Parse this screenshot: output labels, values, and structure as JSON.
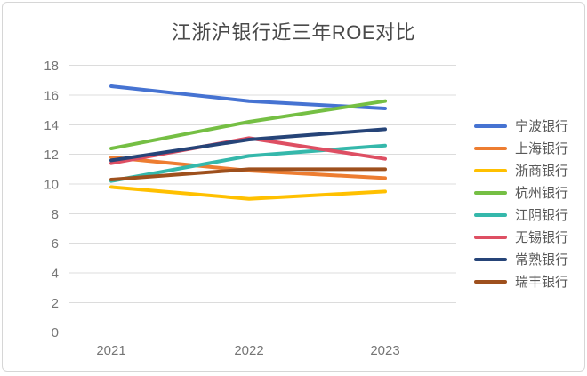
{
  "chart_data": {
    "type": "line",
    "title": "江浙沪银行近三年ROE对比",
    "categories": [
      "2021",
      "2022",
      "2023"
    ],
    "series": [
      {
        "name": "宁波银行",
        "color": "#4673d2",
        "values": [
          16.6,
          15.6,
          15.1
        ]
      },
      {
        "name": "上海银行",
        "color": "#ed7d31",
        "values": [
          11.8,
          10.9,
          10.4
        ]
      },
      {
        "name": "浙商银行",
        "color": "#ffc000",
        "values": [
          9.8,
          9.0,
          9.5
        ]
      },
      {
        "name": "杭州银行",
        "color": "#75bf44",
        "values": [
          12.4,
          14.2,
          15.6
        ]
      },
      {
        "name": "江阴银行",
        "color": "#35b8ab",
        "values": [
          10.2,
          11.9,
          12.6
        ]
      },
      {
        "name": "无锡银行",
        "color": "#de4f63",
        "values": [
          11.4,
          13.1,
          11.7
        ]
      },
      {
        "name": "常熟银行",
        "color": "#264478",
        "values": [
          11.6,
          13.0,
          13.7
        ]
      },
      {
        "name": "瑞丰银行",
        "color": "#9e501d",
        "values": [
          10.3,
          11.0,
          11.0
        ]
      }
    ],
    "ylim": [
      0,
      18
    ],
    "yticks": [
      0,
      2,
      4,
      6,
      8,
      10,
      12,
      14,
      16,
      18
    ],
    "grid": true,
    "legend_position": "right"
  }
}
